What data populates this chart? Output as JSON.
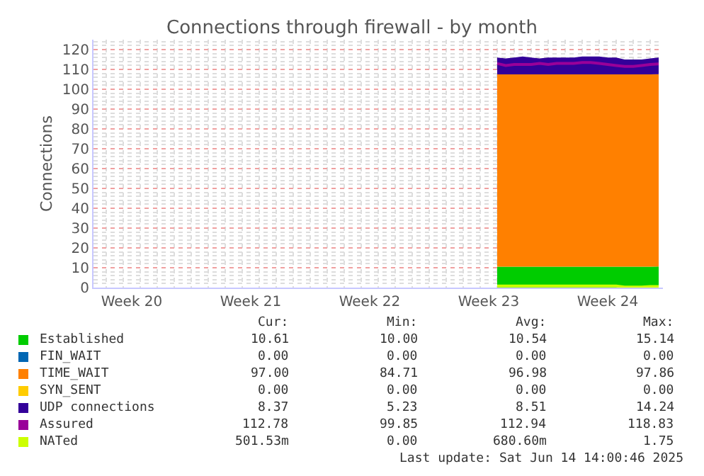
{
  "chart_data": {
    "type": "area",
    "title": "Connections through firewall - by month",
    "ylabel": "Connections",
    "stacked": true,
    "grid": true,
    "legend": "bottom",
    "categories": [
      null,
      null,
      null,
      null,
      "Week 20",
      null,
      null,
      null,
      null,
      null,
      null,
      null,
      null,
      null,
      null,
      null,
      null,
      null,
      "Week 21",
      null,
      null,
      null,
      null,
      null,
      null,
      null,
      null,
      null,
      null,
      null,
      null,
      null,
      "Week 22",
      null,
      null,
      null,
      null,
      null,
      null,
      null,
      null,
      null,
      null,
      null,
      null,
      null,
      "Week 23",
      null,
      null,
      null,
      null,
      null,
      null,
      null,
      null,
      null,
      null,
      null,
      null,
      null,
      "Week 24",
      null,
      null,
      null,
      null,
      null,
      null
    ],
    "ylim": [
      0,
      125
    ],
    "yticks": [
      0,
      10,
      20,
      30,
      40,
      50,
      60,
      70,
      80,
      90,
      100,
      110,
      120
    ],
    "series": [
      {
        "name": "Established",
        "color": "#00cc00",
        "values": [
          null,
          null,
          null,
          null,
          null,
          null,
          null,
          null,
          null,
          null,
          null,
          null,
          null,
          null,
          null,
          null,
          null,
          null,
          null,
          null,
          null,
          null,
          null,
          null,
          null,
          null,
          null,
          null,
          null,
          null,
          null,
          null,
          null,
          null,
          null,
          null,
          null,
          null,
          null,
          null,
          null,
          null,
          null,
          null,
          null,
          null,
          null,
          10.5,
          10.5,
          10.5,
          10.5,
          10.5,
          10.5,
          10.5,
          10.5,
          10.5,
          10.5,
          10.5,
          10.5,
          10.5,
          10.5,
          10.5,
          10.5,
          10.5,
          10.5,
          10.5,
          10.6
        ]
      },
      {
        "name": "FIN_WAIT",
        "color": "#0066b3",
        "values": [
          null,
          null,
          null,
          null,
          null,
          null,
          null,
          null,
          null,
          null,
          null,
          null,
          null,
          null,
          null,
          null,
          null,
          null,
          null,
          null,
          null,
          null,
          null,
          null,
          null,
          null,
          null,
          null,
          null,
          null,
          null,
          null,
          null,
          null,
          null,
          null,
          null,
          null,
          null,
          null,
          null,
          null,
          null,
          null,
          null,
          null,
          null,
          null,
          null,
          null,
          null,
          null,
          null,
          null,
          null,
          null,
          null,
          null,
          null,
          null,
          null,
          null,
          null,
          null,
          null,
          null,
          null
        ]
      },
      {
        "name": "TIME_WAIT",
        "color": "#ff8000",
        "values": [
          null,
          null,
          null,
          null,
          null,
          null,
          null,
          null,
          null,
          null,
          null,
          null,
          null,
          null,
          null,
          null,
          null,
          null,
          null,
          null,
          null,
          null,
          null,
          null,
          null,
          null,
          null,
          null,
          null,
          null,
          null,
          null,
          null,
          null,
          null,
          null,
          null,
          null,
          null,
          null,
          null,
          null,
          null,
          null,
          null,
          null,
          null,
          97,
          97,
          97,
          97,
          97,
          97,
          97,
          97,
          97,
          97,
          97,
          97,
          97,
          97,
          97,
          97,
          97,
          97,
          97,
          97
        ]
      },
      {
        "name": "SYN_SENT",
        "color": "#ffcc00",
        "values": [
          null,
          null,
          null,
          null,
          null,
          null,
          null,
          null,
          null,
          null,
          null,
          null,
          null,
          null,
          null,
          null,
          null,
          null,
          null,
          null,
          null,
          null,
          null,
          null,
          null,
          null,
          null,
          null,
          null,
          null,
          null,
          null,
          null,
          null,
          null,
          null,
          null,
          null,
          null,
          null,
          null,
          null,
          null,
          null,
          null,
          null,
          null,
          null,
          null,
          null,
          null,
          null,
          null,
          null,
          null,
          null,
          null,
          null,
          null,
          null,
          null,
          null,
          null,
          null,
          null,
          null,
          null
        ]
      },
      {
        "name": "UDP connections",
        "color": "#330099",
        "values": [
          null,
          null,
          null,
          null,
          null,
          null,
          null,
          null,
          null,
          null,
          null,
          null,
          null,
          null,
          null,
          null,
          null,
          null,
          null,
          null,
          null,
          null,
          null,
          null,
          null,
          null,
          null,
          null,
          null,
          null,
          null,
          null,
          null,
          null,
          null,
          null,
          null,
          null,
          null,
          null,
          null,
          null,
          null,
          null,
          null,
          null,
          null,
          8.5,
          8,
          8.5,
          9,
          8.5,
          8,
          8.5,
          8.5,
          8.5,
          8.5,
          9,
          9,
          9,
          8.5,
          8.5,
          7.5,
          7.5,
          7.5,
          8,
          8.4
        ]
      },
      {
        "name": "Assured",
        "color": "#990099",
        "type": "line",
        "values": [
          null,
          null,
          null,
          null,
          null,
          null,
          null,
          null,
          null,
          null,
          null,
          null,
          null,
          null,
          null,
          null,
          null,
          null,
          null,
          null,
          null,
          null,
          null,
          null,
          null,
          null,
          null,
          null,
          null,
          null,
          null,
          null,
          null,
          null,
          null,
          null,
          null,
          null,
          null,
          null,
          null,
          null,
          null,
          null,
          null,
          null,
          null,
          113,
          112,
          112.5,
          112.5,
          112.5,
          113,
          112.5,
          113,
          113,
          113,
          113.5,
          113.5,
          113,
          112.5,
          112,
          111.5,
          111.5,
          112,
          112.5,
          112.8
        ]
      },
      {
        "name": "NATed",
        "color": "#ccff00",
        "type": "line",
        "values": [
          null,
          null,
          null,
          null,
          null,
          null,
          null,
          null,
          null,
          null,
          null,
          null,
          null,
          null,
          null,
          null,
          null,
          null,
          null,
          null,
          null,
          null,
          null,
          null,
          null,
          null,
          null,
          null,
          null,
          null,
          null,
          null,
          null,
          null,
          null,
          null,
          null,
          null,
          null,
          null,
          null,
          null,
          null,
          null,
          null,
          null,
          null,
          0.8,
          0.8,
          0.8,
          0.8,
          0.8,
          0.8,
          0.8,
          0.8,
          0.8,
          0.8,
          0.8,
          0.8,
          0.8,
          0.8,
          0.8,
          0.3,
          0.3,
          0.3,
          0.5,
          0.5
        ]
      }
    ],
    "annotations": [
      "Cur:",
      "Min:",
      "Avg:",
      "Max:",
      "10.61",
      "10.00",
      "10.54",
      "15.14",
      "0.00",
      "0.00",
      "0.00",
      "0.00",
      "97.00",
      "84.71",
      "96.98",
      "97.86",
      "0.00",
      "0.00",
      "0.00",
      "0.00",
      "8.37",
      "5.23",
      "8.51",
      "14.24",
      "112.78",
      "99.85",
      "112.94",
      "118.83",
      "501.53m",
      "0.00",
      "680.60m",
      "1.75",
      "Last update: Sat Jun 14 14:00:46 2025"
    ]
  }
}
